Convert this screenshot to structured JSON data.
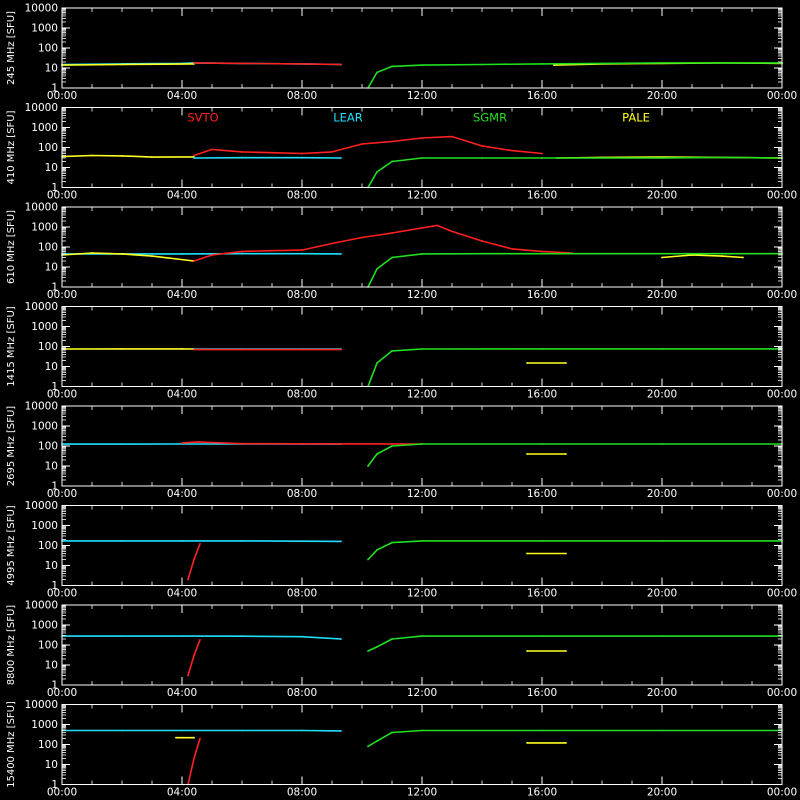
{
  "chart_data": {
    "type": "line",
    "colors": {
      "SVTO": "#ff2020",
      "LEAR": "#20e0ff",
      "SGMR": "#20e020",
      "PALE": "#ffff20",
      "axis": "#ffffff",
      "background": "#000000"
    },
    "legend": [
      "SVTO",
      "LEAR",
      "SGMR",
      "PALE"
    ],
    "legend_placement": "inside second panel, top row",
    "x_ticks": [
      "00:00",
      "04:00",
      "08:00",
      "12:00",
      "16:00",
      "20:00",
      "00:00"
    ],
    "x_range_hours": [
      0,
      24
    ],
    "y_scale": "log",
    "y_ticks": [
      "1",
      "10",
      "100",
      "1000",
      "10000"
    ],
    "y_range": [
      1,
      10000
    ],
    "panels": [
      {
        "ylabel": "245 MHz [SFU]",
        "series": [
          {
            "name": "LEAR",
            "segments": [
              {
                "x": [
                  0,
                  2,
                  4,
                  4.4,
                  6,
                  8,
                  9.3
                ],
                "y": [
                  15,
                  16,
                  17,
                  18,
                  17,
                  16,
                  15
                ]
              }
            ]
          },
          {
            "name": "PALE",
            "segments": [
              {
                "x": [
                  0,
                  2,
                  4.4
                ],
                "y": [
                  14,
                  15,
                  16
                ]
              },
              {
                "x": [
                  16.4,
                  18,
                  20,
                  22,
                  24
                ],
                "y": [
                  14,
                  16,
                  17,
                  18,
                  17
                ]
              }
            ]
          },
          {
            "name": "SVTO",
            "segments": [
              {
                "x": [
                  4.4,
                  6,
                  8,
                  9.3
                ],
                "y": [
                  18,
                  17,
                  16,
                  15
                ]
              }
            ]
          },
          {
            "name": "SGMR",
            "segments": [
              {
                "x": [
                  10.2,
                  10.5,
                  11,
                  12,
                  14,
                  16,
                  18,
                  20,
                  22,
                  24
                ],
                "y": [
                  1,
                  6,
                  12,
                  14,
                  15,
                  16,
                  17,
                  18,
                  18,
                  18
                ]
              }
            ]
          }
        ]
      },
      {
        "ylabel": "410 MHz [SFU]",
        "series": [
          {
            "name": "PALE",
            "segments": [
              {
                "x": [
                  0,
                  1,
                  2,
                  3,
                  4.4
                ],
                "y": [
                  35,
                  40,
                  38,
                  33,
                  34
                ]
              },
              {
                "x": [
                  16.5,
                  18,
                  20,
                  22,
                  24
                ],
                "y": [
                  30,
                  32,
                  33,
                  32,
                  30
                ]
              }
            ]
          },
          {
            "name": "LEAR",
            "segments": [
              {
                "x": [
                  4.4,
                  6,
                  8,
                  9.3
                ],
                "y": [
                  30,
                  31,
                  31,
                  30
                ]
              }
            ]
          },
          {
            "name": "SVTO",
            "segments": [
              {
                "x": [
                  4.4,
                  5,
                  6,
                  7,
                  8,
                  9,
                  10,
                  11,
                  12,
                  13,
                  14,
                  15,
                  16
                ],
                "y": [
                  40,
                  80,
                  60,
                  55,
                  50,
                  60,
                  150,
                  200,
                  300,
                  350,
                  120,
                  70,
                  50
                ]
              }
            ]
          },
          {
            "name": "SGMR",
            "segments": [
              {
                "x": [
                  10.2,
                  10.5,
                  11,
                  12,
                  14,
                  16,
                  18,
                  20,
                  22,
                  24
                ],
                "y": [
                  1,
                  6,
                  20,
                  30,
                  30,
                  30,
                  30,
                  30,
                  32,
                  30
                ]
              }
            ]
          }
        ]
      },
      {
        "ylabel": "610 MHz [SFU]",
        "series": [
          {
            "name": "LEAR",
            "segments": [
              {
                "x": [
                  0,
                  2,
                  4,
                  6,
                  8,
                  9.3
                ],
                "y": [
                  45,
                  45,
                  45,
                  46,
                  46,
                  45
                ]
              }
            ]
          },
          {
            "name": "PALE",
            "segments": [
              {
                "x": [
                  0,
                  1,
                  2,
                  3,
                  4.4
                ],
                "y": [
                  40,
                  50,
                  45,
                  35,
                  20
                ]
              },
              {
                "x": [
                  20,
                  21,
                  22,
                  22.7
                ],
                "y": [
                  30,
                  40,
                  35,
                  30
                ]
              }
            ]
          },
          {
            "name": "SVTO",
            "segments": [
              {
                "x": [
                  4.4,
                  5,
                  6,
                  7,
                  8,
                  9,
                  10,
                  11,
                  12,
                  12.5,
                  13,
                  14,
                  15,
                  16,
                  17
                ],
                "y": [
                  20,
                  40,
                  60,
                  65,
                  70,
                  150,
                  300,
                  500,
                  900,
                  1200,
                  600,
                  200,
                  80,
                  60,
                  50
                ]
              }
            ]
          },
          {
            "name": "SGMR",
            "segments": [
              {
                "x": [
                  10.2,
                  10.5,
                  11,
                  12,
                  14,
                  16,
                  18,
                  20,
                  22,
                  24
                ],
                "y": [
                  1,
                  8,
                  30,
                  45,
                  46,
                  46,
                  46,
                  46,
                  46,
                  46
                ]
              }
            ]
          }
        ]
      },
      {
        "ylabel": "1415 MHz [SFU]",
        "series": [
          {
            "name": "PALE",
            "segments": [
              {
                "x": [
                  0,
                  2,
                  4,
                  4.4
                ],
                "y": [
                  75,
                  76,
                  76,
                  75
                ]
              },
              {
                "x": [
                  15.5,
                  16.8
                ],
                "y": [
                  15,
                  15
                ]
              }
            ]
          },
          {
            "name": "LEAR",
            "segments": [
              {
                "x": [
                  4.4,
                  6,
                  8,
                  9.3
                ],
                "y": [
                  75,
                  75,
                  75,
                  75
                ]
              }
            ]
          },
          {
            "name": "SVTO",
            "segments": [
              {
                "x": [
                  4.4,
                  6,
                  8,
                  9.3
                ],
                "y": [
                  70,
                  70,
                  70,
                  70
                ]
              }
            ]
          },
          {
            "name": "SGMR",
            "segments": [
              {
                "x": [
                  10.2,
                  10.5,
                  11,
                  12,
                  16,
                  20,
                  24
                ],
                "y": [
                  1,
                  15,
                  60,
                  75,
                  76,
                  76,
                  76
                ]
              }
            ]
          }
        ]
      },
      {
        "ylabel": "2695 MHz [SFU]",
        "series": [
          {
            "name": "LEAR",
            "segments": [
              {
                "x": [
                  0,
                  2,
                  4,
                  6,
                  8,
                  9.3
                ],
                "y": [
                  125,
                  125,
                  126,
                  126,
                  126,
                  125
                ]
              }
            ]
          },
          {
            "name": "SVTO",
            "segments": [
              {
                "x": [
                  4,
                  4.5,
                  6,
                  9.3,
                  12
                ],
                "y": [
                  140,
                  160,
                  130,
                  128,
                  126
                ]
              }
            ]
          },
          {
            "name": "PALE",
            "segments": [
              {
                "x": [
                  15.5,
                  16.8
                ],
                "y": [
                  40,
                  40
                ]
              }
            ]
          },
          {
            "name": "SGMR",
            "segments": [
              {
                "x": [
                  10.2,
                  10.5,
                  11,
                  12,
                  16,
                  20,
                  24
                ],
                "y": [
                  10,
                  40,
                  100,
                  126,
                  126,
                  126,
                  126
                ]
              }
            ]
          }
        ]
      },
      {
        "ylabel": "4995 MHz [SFU]",
        "series": [
          {
            "name": "LEAR",
            "segments": [
              {
                "x": [
                  0,
                  2,
                  4,
                  6,
                  8,
                  9.3
                ],
                "y": [
                  170,
                  170,
                  170,
                  170,
                  165,
                  160
                ]
              }
            ]
          },
          {
            "name": "SVTO",
            "segments": [
              {
                "x": [
                  4.2,
                  4.4,
                  4.6
                ],
                "y": [
                  2,
                  20,
                  120
                ]
              }
            ]
          },
          {
            "name": "PALE",
            "segments": [
              {
                "x": [
                  15.5,
                  16.8
                ],
                "y": [
                  40,
                  40
                ]
              }
            ]
          },
          {
            "name": "SGMR",
            "segments": [
              {
                "x": [
                  10.2,
                  10.5,
                  11,
                  12,
                  16,
                  20,
                  24
                ],
                "y": [
                  20,
                  60,
                  140,
                  170,
                  170,
                  170,
                  170
                ]
              }
            ]
          }
        ]
      },
      {
        "ylabel": "8800 MHz [SFU]",
        "series": [
          {
            "name": "LEAR",
            "segments": [
              {
                "x": [
                  0,
                  2,
                  4,
                  6,
                  8,
                  9.3
                ],
                "y": [
                  280,
                  280,
                  280,
                  275,
                  260,
                  200
                ]
              }
            ]
          },
          {
            "name": "SVTO",
            "segments": [
              {
                "x": [
                  4.2,
                  4.4,
                  4.6
                ],
                "y": [
                  3,
                  30,
                  180
                ]
              }
            ]
          },
          {
            "name": "PALE",
            "segments": [
              {
                "x": [
                  15.5,
                  16.8
                ],
                "y": [
                  50,
                  50
                ]
              }
            ]
          },
          {
            "name": "SGMR",
            "segments": [
              {
                "x": [
                  10.2,
                  10.5,
                  11,
                  12,
                  16,
                  20,
                  24
                ],
                "y": [
                  50,
                  80,
                  200,
                  280,
                  280,
                  280,
                  280
                ]
              }
            ]
          }
        ]
      },
      {
        "ylabel": "15400 MHz [SFU]",
        "series": [
          {
            "name": "LEAR",
            "segments": [
              {
                "x": [
                  0,
                  2,
                  4,
                  6,
                  8,
                  9.3
                ],
                "y": [
                  500,
                  500,
                  500,
                  500,
                  500,
                  480
                ]
              }
            ]
          },
          {
            "name": "PALE",
            "segments": [
              {
                "x": [
                  3.8,
                  4.4
                ],
                "y": [
                  220,
                  220
                ]
              },
              {
                "x": [
                  15.5,
                  16.8
                ],
                "y": [
                  120,
                  120
                ]
              }
            ]
          },
          {
            "name": "SVTO",
            "segments": [
              {
                "x": [
                  4.2,
                  4.4,
                  4.6
                ],
                "y": [
                  1,
                  20,
                  200
                ]
              }
            ]
          },
          {
            "name": "SGMR",
            "segments": [
              {
                "x": [
                  10.2,
                  10.5,
                  11,
                  12,
                  16,
                  20,
                  24
                ],
                "y": [
                  80,
                  150,
                  400,
                  500,
                  500,
                  500,
                  500
                ]
              }
            ]
          }
        ]
      }
    ]
  }
}
